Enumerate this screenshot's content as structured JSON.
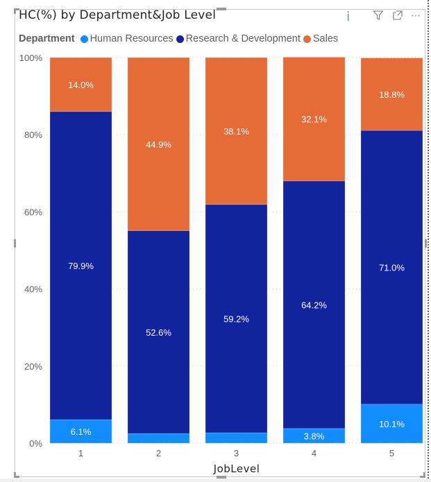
{
  "visual": {
    "title": "HC(%) by Department&Job Level",
    "header_icons": [
      "info-icon",
      "filter-icon",
      "focus-mode-icon",
      "more-options-icon"
    ]
  },
  "legend": {
    "title": "Department",
    "items": [
      {
        "label": "Human Resources",
        "color": "#118dff"
      },
      {
        "label": "Research & Development",
        "color": "#12239e"
      },
      {
        "label": "Sales",
        "color": "#e66c37"
      }
    ]
  },
  "chart_data": {
    "type": "bar",
    "stacked": "100%",
    "title": "HC(%) by Department&Job Level",
    "xlabel": "JobLevel",
    "ylabel": "",
    "categories": [
      "1",
      "2",
      "3",
      "4",
      "5"
    ],
    "series": [
      {
        "name": "Human Resources",
        "color": "#118dff",
        "values": [
          6.1,
          2.5,
          2.7,
          3.8,
          10.1
        ],
        "labels": [
          "6.1%",
          "",
          "",
          "3.8%",
          "10.1%"
        ]
      },
      {
        "name": "Research & Development",
        "color": "#12239e",
        "values": [
          79.9,
          52.6,
          59.2,
          64.2,
          71.0
        ],
        "labels": [
          "79.9%",
          "52.6%",
          "59.2%",
          "64.2%",
          "71.0%"
        ]
      },
      {
        "name": "Sales",
        "color": "#e66c37",
        "values": [
          14.0,
          44.9,
          38.1,
          32.1,
          18.8
        ],
        "labels": [
          "14.0%",
          "44.9%",
          "38.1%",
          "32.1%",
          "18.8%"
        ]
      }
    ],
    "ylim": [
      0,
      100
    ],
    "yticks": [
      "0%",
      "20%",
      "40%",
      "60%",
      "80%",
      "100%"
    ],
    "grid": true,
    "legend": "top-left"
  }
}
